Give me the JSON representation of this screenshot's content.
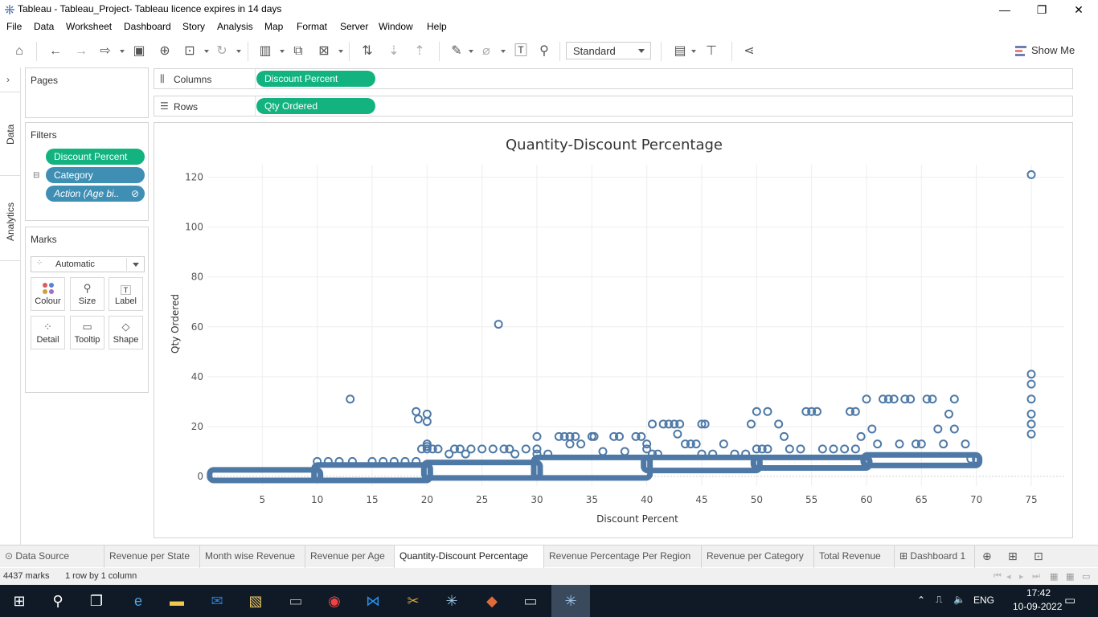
{
  "window": {
    "title": "Tableau - Tableau_Project- Tableau licence expires in 14 days",
    "minimize": "—",
    "restore": "❐",
    "close": "✕"
  },
  "menu": [
    "File",
    "Data",
    "Worksheet",
    "Dashboard",
    "Story",
    "Analysis",
    "Map",
    "Format",
    "Server",
    "Window",
    "Help"
  ],
  "toolbar": {
    "fit_select": "Standard",
    "show_me_label": "Show Me"
  },
  "side_tabs": {
    "data": "Data",
    "analytics": "Analytics"
  },
  "pages": {
    "title": "Pages"
  },
  "filters": {
    "title": "Filters",
    "items": [
      "Discount Percent",
      "Category",
      "Action (Age bi.."
    ]
  },
  "marks": {
    "title": "Marks",
    "type": "Automatic",
    "buttons": [
      "Colour",
      "Size",
      "Label",
      "Detail",
      "Tooltip",
      "Shape"
    ]
  },
  "shelves": {
    "columns_label": "Columns",
    "columns_pill": "Discount Percent",
    "rows_label": "Rows",
    "rows_pill": "Qty Ordered"
  },
  "sheet_tabs": {
    "data_source": "Data Source",
    "tabs": [
      "Revenue per State",
      "Month wise Revenue",
      "Revenue per Age",
      "Quantity-Discount Percentage",
      "Revenue Percentage Per Region",
      "Revenue per Category",
      "Total Revenue"
    ],
    "active": "Quantity-Discount Percentage",
    "dashboard": "Dashboard 1"
  },
  "status": {
    "marks": "4437 marks",
    "dims": "1 row by 1 column"
  },
  "taskbar": {
    "lang": "ENG",
    "time": "17:42",
    "date": "10-09-2022"
  },
  "colors": {
    "pill_green": "#12b37f",
    "pill_blue": "#3f8fb5",
    "mark": "#4e79a7"
  },
  "chart_data": {
    "type": "scatter",
    "title": "Quantity-Discount Percentage",
    "xlabel": "Discount Percent",
    "ylabel": "Qty Ordered",
    "xlim": [
      0,
      78
    ],
    "ylim": [
      0,
      125
    ],
    "xticks": [
      5,
      10,
      15,
      20,
      25,
      30,
      35,
      40,
      45,
      50,
      55,
      60,
      65,
      70,
      75
    ],
    "yticks": [
      0,
      20,
      40,
      60,
      80,
      100,
      120
    ],
    "grid": true,
    "dense_bands": [
      {
        "x_from": 0.5,
        "x_to": 10,
        "y_from": 0,
        "y_to": 1
      },
      {
        "x_from": 10,
        "x_to": 20,
        "y_from": 0,
        "y_to": 3
      },
      {
        "x_from": 20,
        "x_to": 30,
        "y_from": 1,
        "y_to": 4
      },
      {
        "x_from": 30,
        "x_to": 40,
        "y_from": 1,
        "y_to": 6
      },
      {
        "x_from": 40,
        "x_to": 50,
        "y_from": 4,
        "y_to": 6
      },
      {
        "x_from": 50,
        "x_to": 60,
        "y_from": 5,
        "y_to": 6
      },
      {
        "x_from": 60,
        "x_to": 70,
        "y_from": 6,
        "y_to": 7
      }
    ],
    "points": [
      [
        75,
        121
      ],
      [
        26.5,
        61
      ],
      [
        13,
        31
      ],
      [
        75,
        41
      ],
      [
        75,
        37
      ],
      [
        75,
        31
      ],
      [
        75,
        25
      ],
      [
        75,
        21
      ],
      [
        75,
        17
      ],
      [
        10,
        6
      ],
      [
        11,
        6
      ],
      [
        12,
        6
      ],
      [
        13.2,
        6
      ],
      [
        15,
        6
      ],
      [
        16,
        6
      ],
      [
        17,
        6
      ],
      [
        18,
        6
      ],
      [
        19,
        6
      ],
      [
        19,
        26
      ],
      [
        19.2,
        23
      ],
      [
        20,
        25
      ],
      [
        20,
        22
      ],
      [
        20,
        13
      ],
      [
        20,
        12
      ],
      [
        20,
        11
      ],
      [
        19.5,
        11
      ],
      [
        20.5,
        11
      ],
      [
        21,
        11
      ],
      [
        22,
        9
      ],
      [
        22.5,
        11
      ],
      [
        23,
        11
      ],
      [
        23.5,
        9
      ],
      [
        24,
        11
      ],
      [
        25,
        11
      ],
      [
        26,
        11
      ],
      [
        27,
        11
      ],
      [
        27.5,
        11
      ],
      [
        28,
        9
      ],
      [
        29,
        11
      ],
      [
        30,
        16
      ],
      [
        30,
        11
      ],
      [
        30,
        9
      ],
      [
        31,
        9
      ],
      [
        32,
        16
      ],
      [
        32.5,
        16
      ],
      [
        33,
        16
      ],
      [
        33,
        13
      ],
      [
        33.5,
        16
      ],
      [
        34,
        13
      ],
      [
        35,
        16
      ],
      [
        35.2,
        16
      ],
      [
        36,
        10
      ],
      [
        37,
        16
      ],
      [
        37.5,
        16
      ],
      [
        38,
        10
      ],
      [
        39,
        16
      ],
      [
        39.5,
        16
      ],
      [
        40,
        13
      ],
      [
        40,
        11
      ],
      [
        40.5,
        9
      ],
      [
        40.5,
        21
      ],
      [
        41,
        9
      ],
      [
        41.5,
        21
      ],
      [
        42,
        21
      ],
      [
        42.5,
        21
      ],
      [
        42.8,
        17
      ],
      [
        43,
        21
      ],
      [
        43.5,
        13
      ],
      [
        44,
        13
      ],
      [
        44.5,
        13
      ],
      [
        45,
        21
      ],
      [
        45.3,
        21
      ],
      [
        45,
        9
      ],
      [
        46,
        9
      ],
      [
        47,
        13
      ],
      [
        48,
        9
      ],
      [
        49,
        9
      ],
      [
        49.5,
        21
      ],
      [
        50,
        26
      ],
      [
        50,
        11
      ],
      [
        50.5,
        11
      ],
      [
        51,
        26
      ],
      [
        51,
        11
      ],
      [
        52,
        21
      ],
      [
        52.5,
        16
      ],
      [
        53,
        11
      ],
      [
        54,
        11
      ],
      [
        54.5,
        26
      ],
      [
        55,
        26
      ],
      [
        55.5,
        26
      ],
      [
        56,
        11
      ],
      [
        57,
        11
      ],
      [
        58,
        11
      ],
      [
        59,
        11
      ],
      [
        58.5,
        26
      ],
      [
        59,
        26
      ],
      [
        59.5,
        16
      ],
      [
        60,
        31
      ],
      [
        60.5,
        19
      ],
      [
        61,
        13
      ],
      [
        61.5,
        31
      ],
      [
        62,
        31
      ],
      [
        62.5,
        31
      ],
      [
        63,
        13
      ],
      [
        63.5,
        31
      ],
      [
        64,
        31
      ],
      [
        64.5,
        13
      ],
      [
        65,
        13
      ],
      [
        65.5,
        31
      ],
      [
        66,
        31
      ],
      [
        66.5,
        19
      ],
      [
        67,
        13
      ],
      [
        67.5,
        25
      ],
      [
        68,
        31
      ],
      [
        68,
        19
      ],
      [
        69,
        13
      ],
      [
        69.5,
        7
      ],
      [
        70,
        7
      ]
    ]
  }
}
